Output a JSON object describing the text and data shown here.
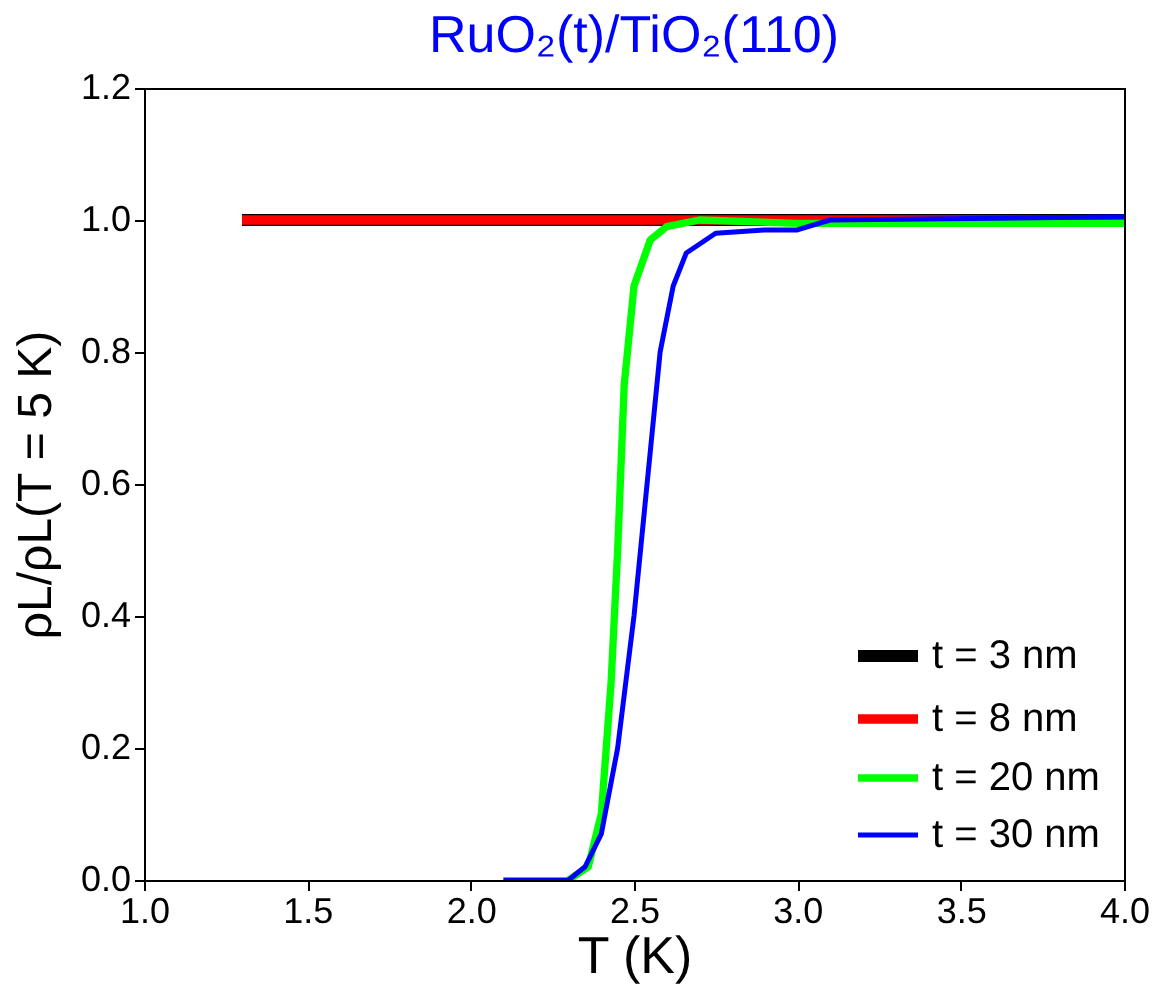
{
  "chart_data": {
    "type": "line",
    "title": "RuO₂(t)/TiO₂(110)",
    "xlabel": "T (K)",
    "ylabel": "ρL/ρL(T = 5 K)",
    "series": [
      {
        "name": "t = 3 nm",
        "color": "#000000",
        "x": [
          1.3,
          4.0
        ],
        "values": [
          1.0,
          1.0
        ]
      },
      {
        "name": "t = 8 nm",
        "color": "#ff0000",
        "x": [
          1.3,
          4.0
        ],
        "values": [
          1.0,
          1.0
        ]
      },
      {
        "name": "t = 20 nm",
        "color": "#00ff00",
        "x": [
          2.3,
          2.36,
          2.4,
          2.43,
          2.45,
          2.47,
          2.5,
          2.55,
          2.6,
          2.7,
          3.0,
          4.0
        ],
        "values": [
          0.0,
          0.02,
          0.1,
          0.3,
          0.5,
          0.75,
          0.9,
          0.97,
          0.99,
          1.0,
          0.995,
          0.995
        ]
      },
      {
        "name": "t = 30 nm",
        "color": "#0000ff",
        "x": [
          2.1,
          2.3,
          2.35,
          2.4,
          2.45,
          2.5,
          2.52,
          2.55,
          2.58,
          2.62,
          2.66,
          2.75,
          2.9,
          3.0,
          3.1,
          4.0
        ],
        "values": [
          0.0,
          0.0,
          0.02,
          0.07,
          0.2,
          0.4,
          0.5,
          0.65,
          0.8,
          0.9,
          0.95,
          0.98,
          0.985,
          0.985,
          1.0,
          1.005
        ]
      }
    ],
    "xlim": [
      1.0,
      4.0
    ],
    "xticks": [
      {
        "value": 1.0,
        "label": "1.0"
      },
      1.5,
      {
        "value": 2.0,
        "label": "2.0"
      },
      2.5,
      {
        "value": 3.0,
        "label": "3.0"
      },
      3.5,
      {
        "value": 4.0,
        "label": "4.0"
      }
    ],
    "ylim": [
      0.0,
      1.2
    ],
    "yticks": [
      {
        "value": 0.0,
        "label": "0.0"
      },
      0.2,
      0.4,
      0.6,
      0.8,
      {
        "value": 1.0,
        "label": "1.0"
      },
      1.2
    ],
    "grid": false,
    "legend": "bottom right",
    "line_style": "solid",
    "marker": "none"
  }
}
